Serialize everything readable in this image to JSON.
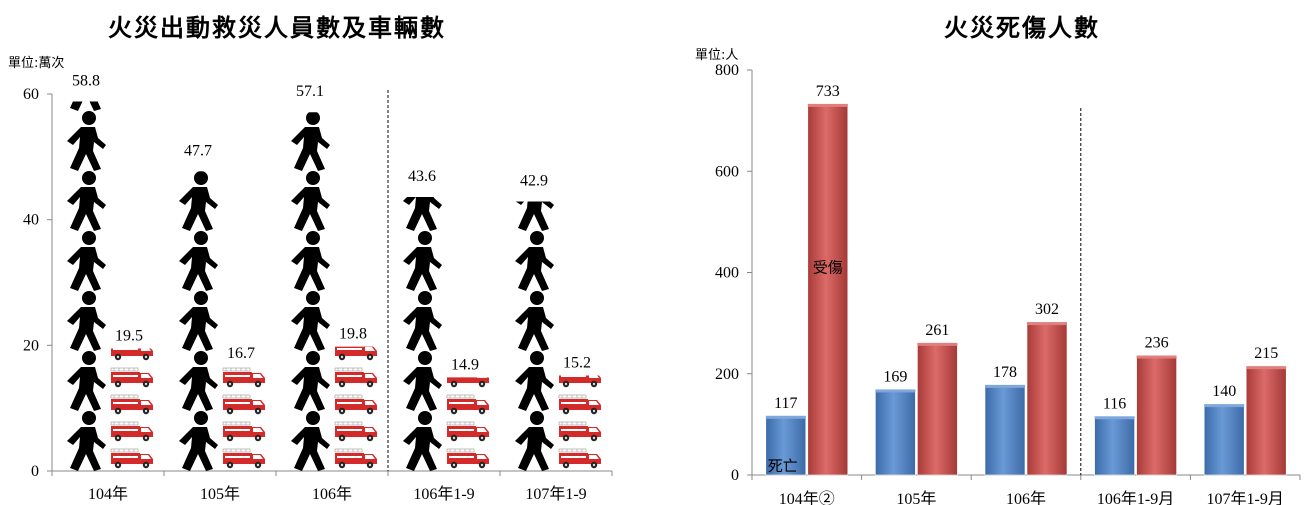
{
  "titles": {
    "chart1": "火災出動救災人員數及車輛數",
    "chart2": "火災死傷人數"
  },
  "units": {
    "chart1": "單位:萬次",
    "chart2": "單位:人"
  },
  "chart_data": [
    {
      "type": "bar",
      "title": "火災出動救災人員數及車輛數",
      "unit": "單位:萬次",
      "categories": [
        "104年",
        "105年",
        "106年",
        "106年1-9",
        "107年1-9"
      ],
      "series": [
        {
          "values": [
            58.8,
            47.7,
            57.1,
            43.6,
            42.9
          ],
          "color": "#000000",
          "icon": "person-walking-icon"
        },
        {
          "values": [
            19.5,
            16.7,
            19.8,
            14.9,
            15.2
          ],
          "color": "#e8413c",
          "icon": "fire-truck-icon"
        }
      ],
      "ylim": [
        0,
        60
      ],
      "yticks": [
        0,
        20,
        40,
        60
      ],
      "divider_after_index": 2
    },
    {
      "type": "bar",
      "title": "火災死傷人數",
      "unit": "單位:人",
      "categories": [
        "104年②",
        "105年",
        "106年",
        "106年1-9月",
        "107年1-9月"
      ],
      "series": [
        {
          "name": "死亡",
          "values": [
            117,
            169,
            178,
            116,
            140
          ],
          "color": "#4f81bd"
        },
        {
          "name": "受傷",
          "values": [
            733,
            261,
            302,
            236,
            215
          ],
          "color": "#c0504d"
        }
      ],
      "ylim": [
        0,
        800
      ],
      "yticks": [
        0,
        200,
        400,
        600,
        800
      ],
      "divider_after_index": 2
    }
  ]
}
